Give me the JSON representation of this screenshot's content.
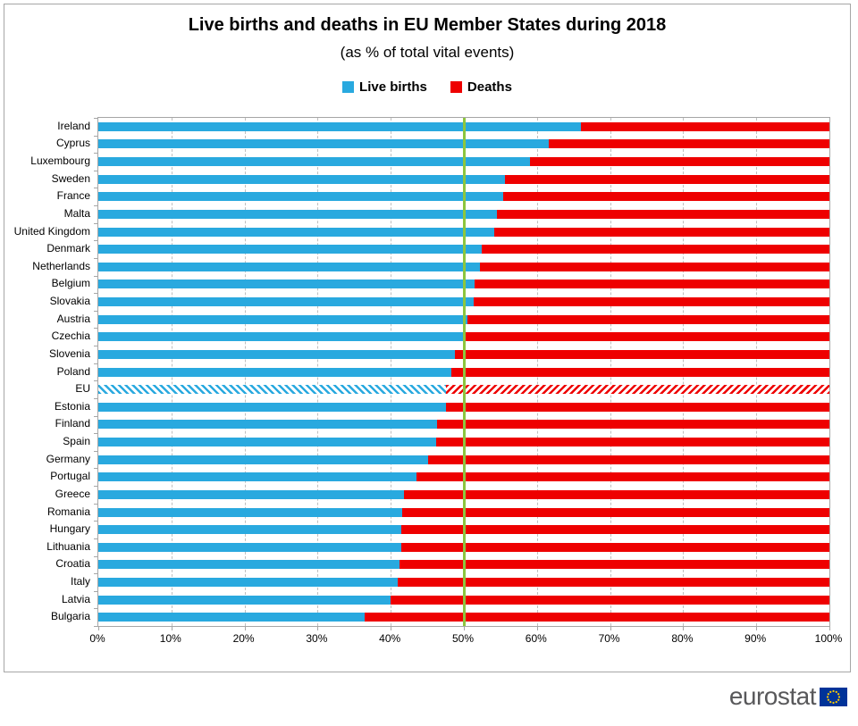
{
  "title": "Live births and deaths in EU Member States during 2018",
  "subtitle": "(as % of total vital events)",
  "legend": [
    {
      "label": "Live births",
      "color": "#29a9df"
    },
    {
      "label": "Deaths",
      "color": "#ee0000"
    }
  ],
  "footer": {
    "brand": "eurostat"
  },
  "colors": {
    "live_births": "#29a9df",
    "deaths": "#ee0000",
    "reference_line": "#8dc63f",
    "gridline": "#bfbfbf",
    "axis": "#a6a6a6",
    "brand_text": "#58585a",
    "eu_flag_blue": "#003399",
    "eu_flag_stars": "#ffcc00"
  },
  "chart_data": {
    "type": "bar",
    "stacked": true,
    "orientation": "horizontal",
    "title": "Live births and deaths in EU Member States during 2018",
    "subtitle": "(as % of total vital events)",
    "xlabel": "",
    "ylabel": "",
    "xlim": [
      0,
      100
    ],
    "unit": "%",
    "grid": true,
    "legend_position": "top",
    "series_names": [
      "Live births",
      "Deaths"
    ],
    "x_ticks": [
      "0%",
      "10%",
      "20%",
      "30%",
      "40%",
      "50%",
      "60%",
      "70%",
      "80%",
      "90%",
      "100%"
    ],
    "reference_line": {
      "value": 50
    },
    "rows": [
      {
        "label": "Ireland",
        "live_births": 66.0,
        "deaths": 34.0,
        "hatched": false
      },
      {
        "label": "Cyprus",
        "live_births": 61.6,
        "deaths": 38.4,
        "hatched": false
      },
      {
        "label": "Luxembourg",
        "live_births": 59.0,
        "deaths": 41.0,
        "hatched": false
      },
      {
        "label": "Sweden",
        "live_births": 55.6,
        "deaths": 44.4,
        "hatched": false
      },
      {
        "label": "France",
        "live_births": 55.4,
        "deaths": 44.6,
        "hatched": false
      },
      {
        "label": "Malta",
        "live_births": 54.5,
        "deaths": 45.5,
        "hatched": false
      },
      {
        "label": "United Kingdom",
        "live_births": 54.2,
        "deaths": 45.8,
        "hatched": false
      },
      {
        "label": "Denmark",
        "live_births": 52.4,
        "deaths": 47.6,
        "hatched": false
      },
      {
        "label": "Netherlands",
        "live_births": 52.2,
        "deaths": 47.8,
        "hatched": false
      },
      {
        "label": "Belgium",
        "live_births": 51.5,
        "deaths": 48.5,
        "hatched": false
      },
      {
        "label": "Slovakia",
        "live_births": 51.3,
        "deaths": 48.7,
        "hatched": false
      },
      {
        "label": "Austria",
        "live_births": 50.5,
        "deaths": 49.5,
        "hatched": false
      },
      {
        "label": "Czechia",
        "live_births": 50.2,
        "deaths": 49.8,
        "hatched": false
      },
      {
        "label": "Slovenia",
        "live_births": 48.8,
        "deaths": 51.2,
        "hatched": false
      },
      {
        "label": "Poland",
        "live_births": 48.3,
        "deaths": 51.7,
        "hatched": false
      },
      {
        "label": "EU",
        "live_births": 47.6,
        "deaths": 52.4,
        "hatched": true
      },
      {
        "label": "Estonia",
        "live_births": 47.5,
        "deaths": 52.5,
        "hatched": false
      },
      {
        "label": "Finland",
        "live_births": 46.3,
        "deaths": 53.7,
        "hatched": false
      },
      {
        "label": "Spain",
        "live_births": 46.2,
        "deaths": 53.8,
        "hatched": false
      },
      {
        "label": "Germany",
        "live_births": 45.1,
        "deaths": 54.9,
        "hatched": false
      },
      {
        "label": "Portugal",
        "live_births": 43.5,
        "deaths": 56.5,
        "hatched": false
      },
      {
        "label": "Greece",
        "live_births": 41.8,
        "deaths": 58.2,
        "hatched": false
      },
      {
        "label": "Romania",
        "live_births": 41.6,
        "deaths": 58.4,
        "hatched": false
      },
      {
        "label": "Hungary",
        "live_births": 41.5,
        "deaths": 58.5,
        "hatched": false
      },
      {
        "label": "Lithuania",
        "live_births": 41.4,
        "deaths": 58.6,
        "hatched": false
      },
      {
        "label": "Croatia",
        "live_births": 41.2,
        "deaths": 58.8,
        "hatched": false
      },
      {
        "label": "Italy",
        "live_births": 41.0,
        "deaths": 59.0,
        "hatched": false
      },
      {
        "label": "Latvia",
        "live_births": 40.0,
        "deaths": 60.0,
        "hatched": false
      },
      {
        "label": "Bulgaria",
        "live_births": 36.4,
        "deaths": 63.6,
        "hatched": false
      }
    ]
  }
}
